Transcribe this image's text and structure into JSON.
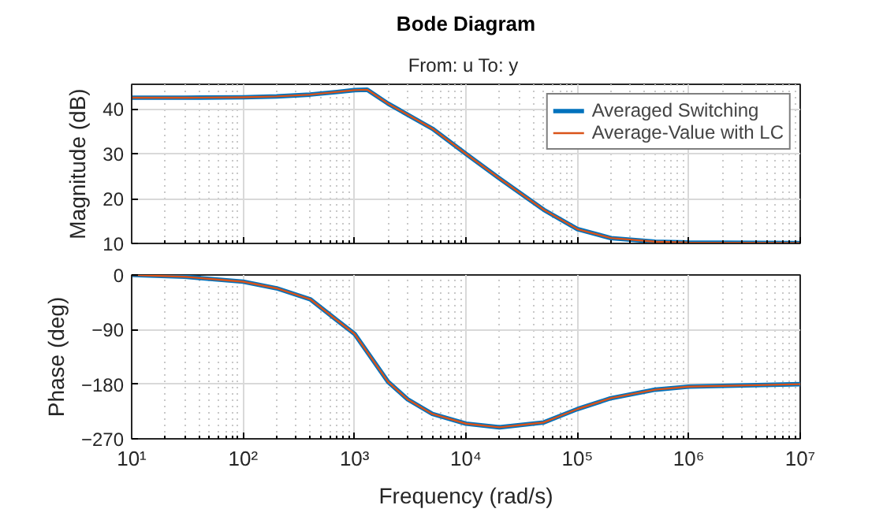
{
  "chart_data": [
    {
      "type": "line",
      "title": "Bode Diagram",
      "subtitle": "From: u  To: y",
      "ylabel": "Magnitude (dB)",
      "x": [
        10,
        30,
        100,
        200,
        400,
        700,
        1000,
        1300,
        2000,
        5000,
        10000,
        20000,
        50000,
        100000,
        200000,
        500000,
        1000000,
        10000000
      ],
      "series": [
        {
          "name": "Averaged Switching",
          "color": "#0072bd",
          "values": [
            42.5,
            42.5,
            42.6,
            42.8,
            43.2,
            43.8,
            44.2,
            44.3,
            41.2,
            35.6,
            30,
            24.5,
            17.5,
            13.2,
            11.2,
            10.4,
            10.2,
            10.1
          ]
        },
        {
          "name": "Average-Value with LC",
          "color": "#d95319",
          "values": [
            42.5,
            42.5,
            42.6,
            42.8,
            43.2,
            43.8,
            44.2,
            44.3,
            41.2,
            35.6,
            30,
            24.5,
            17.5,
            13.2,
            11.2,
            10.4,
            10.2,
            10.1
          ]
        }
      ],
      "log": "x",
      "xlim": [
        10,
        10000000
      ],
      "xticks": [
        {
          "value": 10,
          "label": null
        },
        {
          "value": 100,
          "label": null
        },
        {
          "value": 1000,
          "label": null
        },
        {
          "value": 10000,
          "label": null
        },
        {
          "value": 100000,
          "label": null
        },
        {
          "value": 1000000,
          "label": null
        },
        {
          "value": 10000000,
          "label": null
        }
      ],
      "ylim": [
        10,
        45.5
      ],
      "yticks": [
        10,
        20,
        30,
        40
      ],
      "grid": true,
      "legend": "top right",
      "tick_labels": "y"
    },
    {
      "type": "line",
      "xlabel": "Frequency (rad/s)",
      "ylabel": "Phase (deg)",
      "x": [
        10,
        30,
        100,
        200,
        400,
        700,
        1000,
        2000,
        3000,
        5000,
        10000,
        20000,
        50000,
        100000,
        200000,
        500000,
        1000000,
        10000000
      ],
      "series": [
        {
          "color": "#0072bd",
          "values": [
            0,
            -3,
            -11,
            -22,
            -40,
            -75,
            -97,
            -176,
            -205,
            -229,
            -245,
            -251,
            -243,
            -221,
            -203,
            -189,
            -184,
            -180
          ]
        },
        {
          "color": "#d95319",
          "values": [
            0,
            -3,
            -11,
            -22,
            -40,
            -75,
            -97,
            -176,
            -205,
            -229,
            -245,
            -251,
            -243,
            -221,
            -203,
            -189,
            -184,
            -180
          ]
        }
      ],
      "log": "x",
      "xlim": [
        10,
        10000000
      ],
      "xticks": [
        {
          "value": 10,
          "label": "10¹"
        },
        {
          "value": 100,
          "label": "10²"
        },
        {
          "value": 1000,
          "label": "10³"
        },
        {
          "value": 10000,
          "label": "10⁴"
        },
        {
          "value": 100000,
          "label": "10⁵"
        },
        {
          "value": 1000000,
          "label": "10⁶"
        },
        {
          "value": 10000000,
          "label": "10⁷"
        }
      ],
      "ylim": [
        -270,
        0
      ],
      "yticks": [
        0,
        -90,
        -180,
        -270
      ],
      "grid": true
    }
  ]
}
